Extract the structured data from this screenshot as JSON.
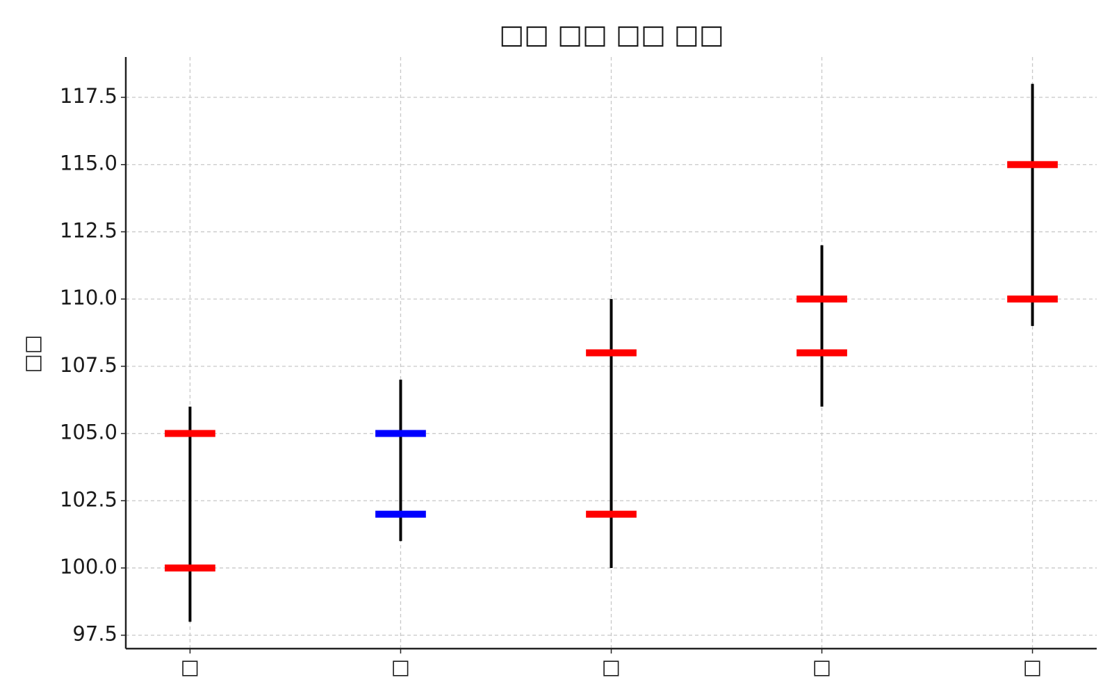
{
  "chart_data": {
    "type": "ohlc",
    "title": "□□ □□ □□ □□",
    "y_label": "□□",
    "categories": [
      "□",
      "□",
      "□",
      "□",
      "□"
    ],
    "open": [
      100,
      105,
      102,
      108,
      110
    ],
    "high": [
      106,
      107,
      110,
      112,
      118
    ],
    "low": [
      98,
      101,
      100,
      106,
      109
    ],
    "close": [
      105,
      102,
      108,
      110,
      115
    ],
    "colors": [
      "#ff0000",
      "#0000ff",
      "#ff0000",
      "#ff0000",
      "#ff0000"
    ],
    "wick_color": "#000000",
    "ylim": [
      97,
      119
    ],
    "yticks": [
      97.5,
      {
        "value": 100,
        "label": "100.0"
      },
      102.5,
      {
        "value": 105,
        "label": "105.0"
      },
      107.5,
      {
        "value": 110,
        "label": "110.0"
      },
      112.5,
      {
        "value": 115,
        "label": "115.0"
      },
      117.5
    ],
    "grid": true
  }
}
